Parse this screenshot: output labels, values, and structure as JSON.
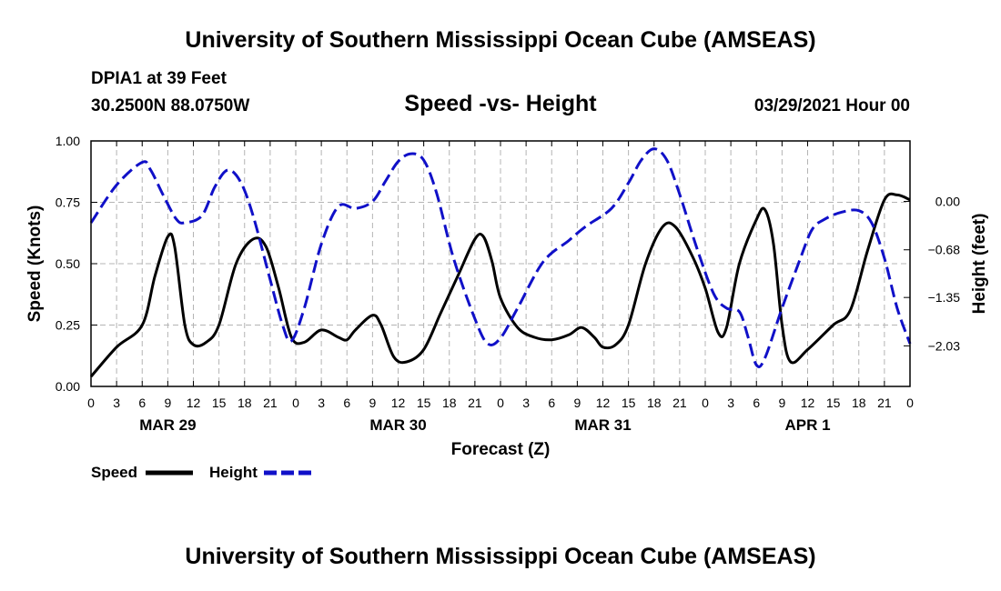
{
  "header": {
    "title_top": "University of Southern Mississippi Ocean Cube (AMSEAS)",
    "station": "DPIA1 at 39 Feet",
    "coords": "30.2500N  88.0750W",
    "chart_title": "Speed -vs- Height",
    "run_time": "03/29/2021 Hour 00",
    "title_bottom": "University of Southern Mississippi Ocean Cube (AMSEAS)"
  },
  "colors": {
    "speed": "#000000",
    "height": "#1010c8",
    "grid": "#b4b4b4"
  },
  "chart_data": {
    "type": "line",
    "title": "Speed -vs- Height",
    "xlabel": "Forecast (Z)",
    "ylabel": "Speed (Knots)",
    "ylabel_right": "Height (feet)",
    "x_range_hours": [
      0,
      96
    ],
    "x_tick_hours": [
      0,
      3,
      6,
      9,
      12,
      15,
      18,
      21,
      24,
      27,
      30,
      33,
      36,
      39,
      42,
      45,
      48,
      51,
      54,
      57,
      60,
      63,
      66,
      69,
      72,
      75,
      78,
      81,
      84,
      87,
      90,
      93,
      96
    ],
    "x_tick_labels": [
      "0",
      "3",
      "6",
      "9",
      "12",
      "15",
      "18",
      "21",
      "0",
      "3",
      "6",
      "9",
      "12",
      "15",
      "18",
      "21",
      "0",
      "3",
      "6",
      "9",
      "12",
      "15",
      "18",
      "21",
      "0",
      "3",
      "6",
      "9",
      "12",
      "15",
      "18",
      "21",
      "0"
    ],
    "day_labels": [
      {
        "label": "MAR 29",
        "hour": 9
      },
      {
        "label": "MAR 30",
        "hour": 36
      },
      {
        "label": "MAR 31",
        "hour": 60
      },
      {
        "label": "APR 1",
        "hour": 84
      }
    ],
    "ylim_left": [
      0,
      1.0
    ],
    "yticks_left": [
      0.0,
      0.25,
      0.5,
      0.75,
      1.0
    ],
    "ytick_labels_left": [
      "0.00",
      "0.25",
      "0.50",
      "0.75",
      "1.00"
    ],
    "ylim_right": [
      -2.6,
      0.85
    ],
    "yticks_right": [
      0.0,
      -0.68,
      -1.35,
      -2.03
    ],
    "ytick_labels_right": [
      "0.00",
      "−0.68",
      "−1.35",
      "−2.03"
    ],
    "grid": true,
    "legend": {
      "position": "bottom-left",
      "speed_label": "Speed",
      "height_label": "Height"
    },
    "series": [
      {
        "name": "Speed",
        "axis": "left",
        "style": "solid",
        "points": [
          [
            0,
            0.04
          ],
          [
            3,
            0.16
          ],
          [
            6,
            0.25
          ],
          [
            7.5,
            0.45
          ],
          [
            9,
            0.61
          ],
          [
            9.8,
            0.57
          ],
          [
            11,
            0.25
          ],
          [
            12,
            0.17
          ],
          [
            13.5,
            0.18
          ],
          [
            15,
            0.25
          ],
          [
            17,
            0.5
          ],
          [
            19,
            0.6
          ],
          [
            20.5,
            0.57
          ],
          [
            22,
            0.4
          ],
          [
            23.5,
            0.2
          ],
          [
            25,
            0.18
          ],
          [
            27,
            0.23
          ],
          [
            29,
            0.2
          ],
          [
            30,
            0.19
          ],
          [
            31,
            0.23
          ],
          [
            33,
            0.29
          ],
          [
            34,
            0.25
          ],
          [
            35.5,
            0.12
          ],
          [
            37,
            0.1
          ],
          [
            39,
            0.15
          ],
          [
            41,
            0.3
          ],
          [
            43,
            0.45
          ],
          [
            45,
            0.6
          ],
          [
            46,
            0.61
          ],
          [
            47,
            0.51
          ],
          [
            48,
            0.36
          ],
          [
            50,
            0.24
          ],
          [
            52,
            0.2
          ],
          [
            54,
            0.19
          ],
          [
            56,
            0.21
          ],
          [
            57.5,
            0.24
          ],
          [
            59,
            0.2
          ],
          [
            60,
            0.16
          ],
          [
            61.5,
            0.17
          ],
          [
            63,
            0.25
          ],
          [
            65,
            0.5
          ],
          [
            67,
            0.65
          ],
          [
            68.5,
            0.65
          ],
          [
            70.5,
            0.53
          ],
          [
            72,
            0.4
          ],
          [
            73.5,
            0.22
          ],
          [
            74.5,
            0.24
          ],
          [
            76,
            0.5
          ],
          [
            78,
            0.68
          ],
          [
            79,
            0.72
          ],
          [
            80,
            0.58
          ],
          [
            81,
            0.25
          ],
          [
            82,
            0.1
          ],
          [
            84,
            0.15
          ],
          [
            87,
            0.25
          ],
          [
            89,
            0.31
          ],
          [
            91,
            0.55
          ],
          [
            93,
            0.76
          ],
          [
            94.5,
            0.78
          ],
          [
            96,
            0.76
          ]
        ]
      },
      {
        "name": "Height",
        "axis": "right",
        "style": "dashed",
        "points": [
          [
            0,
            -0.3
          ],
          [
            3,
            0.23
          ],
          [
            6,
            0.55
          ],
          [
            7,
            0.44
          ],
          [
            8.5,
            0.08
          ],
          [
            10,
            -0.25
          ],
          [
            11,
            -0.3
          ],
          [
            13,
            -0.2
          ],
          [
            14.5,
            0.2
          ],
          [
            16,
            0.44
          ],
          [
            17.5,
            0.28
          ],
          [
            19,
            -0.2
          ],
          [
            21,
            -1.1
          ],
          [
            22.5,
            -1.75
          ],
          [
            23.5,
            -1.96
          ],
          [
            25,
            -1.5
          ],
          [
            27,
            -0.6
          ],
          [
            29,
            -0.07
          ],
          [
            31,
            -0.1
          ],
          [
            33,
            0.0
          ],
          [
            34.5,
            0.28
          ],
          [
            36,
            0.56
          ],
          [
            37.5,
            0.67
          ],
          [
            39,
            0.58
          ],
          [
            40.5,
            0.12
          ],
          [
            42.5,
            -0.8
          ],
          [
            45,
            -1.65
          ],
          [
            46.5,
            -2.0
          ],
          [
            48,
            -1.92
          ],
          [
            50,
            -1.5
          ],
          [
            53,
            -0.85
          ],
          [
            56,
            -0.55
          ],
          [
            58,
            -0.35
          ],
          [
            61,
            -0.1
          ],
          [
            63,
            0.26
          ],
          [
            64.5,
            0.58
          ],
          [
            66,
            0.74
          ],
          [
            67.5,
            0.58
          ],
          [
            69,
            0.1
          ],
          [
            71,
            -0.65
          ],
          [
            73,
            -1.3
          ],
          [
            74.5,
            -1.5
          ],
          [
            76,
            -1.55
          ],
          [
            77,
            -1.9
          ],
          [
            78,
            -2.3
          ],
          [
            79,
            -2.2
          ],
          [
            81,
            -1.5
          ],
          [
            83,
            -0.85
          ],
          [
            84.5,
            -0.4
          ],
          [
            86,
            -0.25
          ],
          [
            88,
            -0.15
          ],
          [
            90,
            -0.13
          ],
          [
            91.5,
            -0.3
          ],
          [
            93,
            -0.8
          ],
          [
            94.5,
            -1.5
          ],
          [
            96,
            -2.0
          ]
        ]
      }
    ]
  }
}
